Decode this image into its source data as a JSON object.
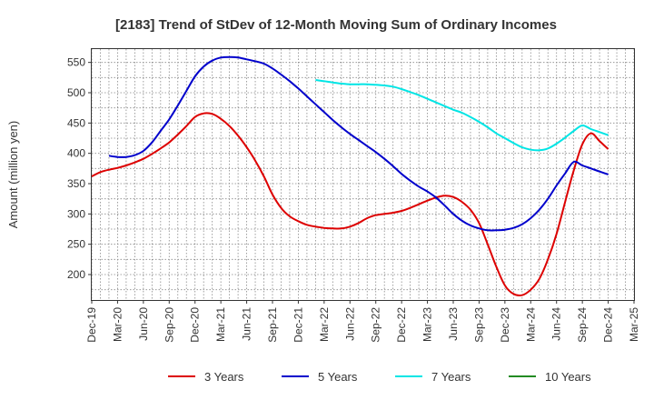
{
  "chart_data": {
    "type": "line",
    "title": "[2183]  Trend of StDev of 12-Month Moving Sum of Ordinary Incomes",
    "xlabel": "",
    "ylabel": "Amount (million yen)",
    "ylim": [
      158,
      572
    ],
    "yticks": [
      200,
      250,
      300,
      350,
      400,
      450,
      500,
      550
    ],
    "x_categories": [
      "Dec-19",
      "Mar-20",
      "Jun-20",
      "Sep-20",
      "Dec-20",
      "Mar-21",
      "Jun-21",
      "Sep-21",
      "Dec-21",
      "Mar-22",
      "Jun-22",
      "Sep-22",
      "Dec-22",
      "Mar-23",
      "Jun-23",
      "Sep-23",
      "Dec-23",
      "Mar-24",
      "Jun-24",
      "Sep-24",
      "Dec-24",
      "Mar-25"
    ],
    "x_month_range": [
      0,
      63
    ],
    "series": [
      {
        "name": "3 Years",
        "color": "#dd0000",
        "x_months": [
          0,
          1,
          2,
          3,
          4,
          5,
          6,
          7,
          8,
          9,
          10,
          11,
          12,
          13,
          14,
          15,
          16,
          17,
          18,
          19,
          20,
          21,
          22,
          23,
          24,
          25,
          26,
          27,
          28,
          29,
          30,
          31,
          32,
          33,
          34,
          35,
          36,
          37,
          38,
          39,
          40,
          41,
          42,
          43,
          44,
          45,
          46,
          47,
          48,
          49,
          50,
          51,
          52,
          53,
          54,
          55,
          56,
          57,
          58,
          59,
          60
        ],
        "values": [
          362,
          369,
          373,
          376,
          380,
          385,
          391,
          399,
          408,
          418,
          431,
          445,
          460,
          466,
          465,
          457,
          445,
          429,
          410,
          388,
          362,
          332,
          310,
          296,
          288,
          282,
          279,
          277,
          276,
          276,
          279,
          285,
          293,
          298,
          300,
          302,
          305,
          310,
          316,
          322,
          327,
          330,
          328,
          320,
          307,
          285,
          250,
          213,
          182,
          168,
          166,
          175,
          193,
          225,
          267,
          320,
          372,
          415,
          433,
          420,
          407
        ],
        "visible_until": 60
      },
      {
        "name": "5 Years",
        "color": "#0000cc",
        "x_months": [
          2,
          3,
          4,
          5,
          6,
          7,
          8,
          9,
          10,
          11,
          12,
          13,
          14,
          15,
          16,
          17,
          18,
          19,
          20,
          21,
          22,
          23,
          24,
          25,
          26,
          27,
          28,
          29,
          30,
          31,
          32,
          33,
          34,
          35,
          36,
          37,
          38,
          39,
          40,
          41,
          42,
          43,
          44,
          45,
          46,
          47,
          48,
          49,
          50,
          51,
          52,
          53,
          54,
          55,
          56,
          57,
          58,
          59,
          60
        ],
        "values": [
          396,
          394,
          394,
          397,
          404,
          418,
          437,
          456,
          479,
          503,
          527,
          543,
          553,
          558,
          559,
          558,
          555,
          552,
          548,
          540,
          530,
          519,
          507,
          494,
          481,
          468,
          455,
          443,
          432,
          422,
          412,
          402,
          391,
          379,
          366,
          355,
          345,
          337,
          327,
          314,
          300,
          289,
          281,
          276,
          273,
          273,
          274,
          277,
          283,
          293,
          307,
          325,
          347,
          367,
          386,
          380,
          375,
          370,
          365
        ],
        "visible_until": 60
      },
      {
        "name": "7 Years",
        "color": "#00e5e5",
        "x_months": [
          26,
          27,
          28,
          29,
          30,
          31,
          32,
          33,
          34,
          35,
          36,
          37,
          38,
          39,
          40,
          41,
          42,
          43,
          44,
          45,
          46,
          47,
          48,
          49,
          50,
          51,
          52,
          53,
          54,
          55,
          56,
          57,
          58,
          59,
          60
        ],
        "values": [
          521,
          519,
          517,
          515,
          514,
          514,
          514,
          513,
          512,
          510,
          506,
          501,
          496,
          490,
          484,
          478,
          472,
          467,
          460,
          452,
          443,
          433,
          425,
          417,
          410,
          406,
          405,
          408,
          416,
          426,
          437,
          446,
          440,
          435,
          430
        ],
        "visible_until": 60
      },
      {
        "name": "10 Years",
        "color": "#228b22",
        "x_months": [],
        "values": [],
        "visible_until": 60
      }
    ],
    "legend_position": "bottom",
    "grid": true
  }
}
